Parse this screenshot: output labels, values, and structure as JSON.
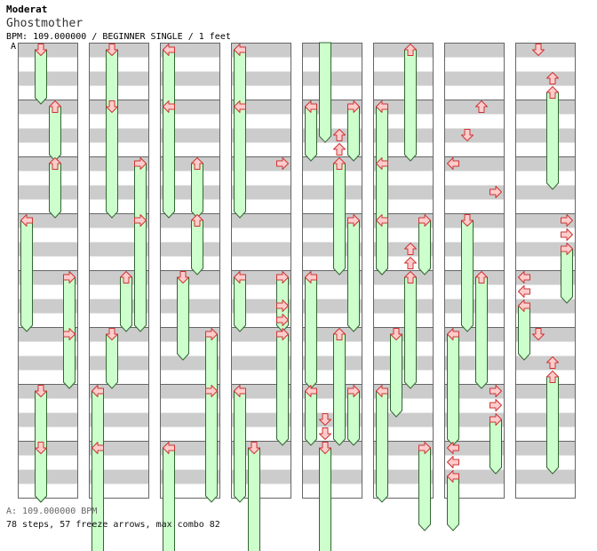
{
  "header": {
    "artist": "Moderat",
    "title": "Ghostmother",
    "info": "BPM: 109.000000 / BEGINNER SINGLE / 1 feet",
    "bpm_marker": "A"
  },
  "footer": {
    "bpm": "A: 109.000000 BPM",
    "summary": "78 steps, 57 freeze arrows, max combo 82"
  },
  "colors": {
    "stripe": "#cccccc",
    "cell_bg": "#ffffff",
    "border": "#666666",
    "arrow_fill": "#ffcccc",
    "arrow_stroke": "#cc3333",
    "freeze_fill": "#ccffcc",
    "freeze_stroke": "#336633"
  },
  "chart_data": {
    "type": "step-chart",
    "lanes": [
      "left",
      "down",
      "up",
      "right"
    ],
    "columns": 8,
    "measures_per_column": 8,
    "beats_per_measure": 4,
    "arrows": [
      [
        0,
        0,
        1,
        1
      ],
      [
        0,
        1,
        2,
        1
      ],
      [
        0,
        2,
        2,
        1
      ],
      [
        0,
        3,
        0,
        2
      ],
      [
        0,
        4,
        3,
        2
      ],
      [
        0,
        5,
        3,
        1
      ],
      [
        0,
        6,
        1,
        2
      ],
      [
        0,
        7,
        1,
        1
      ],
      [
        1,
        0,
        1,
        2
      ],
      [
        1,
        1,
        1,
        2
      ],
      [
        1,
        2,
        3,
        2
      ],
      [
        1,
        3,
        3,
        2
      ],
      [
        1,
        4,
        2,
        1
      ],
      [
        1,
        5,
        1,
        1
      ],
      [
        1,
        6,
        0,
        2
      ],
      [
        1,
        7,
        0,
        2
      ],
      [
        2,
        0,
        0,
        2
      ],
      [
        2,
        1,
        0,
        2
      ],
      [
        2,
        2,
        2,
        1
      ],
      [
        2,
        3,
        2,
        1
      ],
      [
        2,
        4,
        1,
        1.5
      ],
      [
        2,
        5,
        3,
        2
      ],
      [
        2,
        6,
        3,
        2
      ],
      [
        2,
        7,
        0,
        2
      ],
      [
        3,
        0,
        0,
        2
      ],
      [
        3,
        1,
        0,
        2
      ],
      [
        3,
        2,
        3,
        0
      ],
      [
        3,
        4,
        0,
        1
      ],
      [
        3,
        4,
        3,
        1
      ],
      [
        3,
        4.5,
        3,
        0
      ],
      [
        3,
        4.75,
        3,
        0
      ],
      [
        3,
        5,
        3,
        2
      ],
      [
        3,
        6,
        0,
        2
      ],
      [
        3,
        7,
        1,
        2
      ],
      [
        4,
        1,
        0,
        1
      ],
      [
        4,
        1,
        3,
        1
      ],
      [
        4,
        1.5,
        2,
        0
      ],
      [
        4,
        1.75,
        2,
        0
      ],
      [
        4,
        2,
        2,
        2
      ],
      [
        4,
        3,
        3,
        2
      ],
      [
        4,
        4,
        0,
        2
      ],
      [
        4,
        5,
        2,
        2
      ],
      [
        4,
        6,
        0,
        1
      ],
      [
        4,
        6,
        3,
        1
      ],
      [
        4,
        6.5,
        1,
        0
      ],
      [
        4,
        6.75,
        1,
        0
      ],
      [
        4,
        7,
        1,
        2
      ],
      [
        5,
        0,
        2,
        2
      ],
      [
        5,
        1,
        0,
        2
      ],
      [
        5,
        2,
        0,
        2
      ],
      [
        5,
        3,
        0,
        1
      ],
      [
        5,
        3,
        3,
        1
      ],
      [
        5,
        3.5,
        2,
        0
      ],
      [
        5,
        3.75,
        2,
        0
      ],
      [
        5,
        4,
        2,
        2
      ],
      [
        5,
        5,
        1,
        1.5
      ],
      [
        5,
        6,
        0,
        2
      ],
      [
        5,
        7,
        3,
        1.5
      ],
      [
        6,
        1,
        2,
        0
      ],
      [
        6,
        1.5,
        1,
        0
      ],
      [
        6,
        2,
        0,
        0
      ],
      [
        6,
        2.5,
        3,
        0
      ],
      [
        6,
        3,
        1,
        2
      ],
      [
        6,
        4,
        2,
        2
      ],
      [
        6,
        5,
        0,
        2
      ],
      [
        6,
        6,
        3,
        0
      ],
      [
        6,
        6.25,
        3,
        0
      ],
      [
        6,
        6.5,
        3,
        1
      ],
      [
        6,
        7,
        0,
        0
      ],
      [
        6,
        7.25,
        0,
        0
      ],
      [
        6,
        7.5,
        0,
        1
      ],
      [
        7,
        0,
        1,
        0
      ],
      [
        7,
        0.5,
        2,
        0
      ],
      [
        7,
        0.75,
        2,
        1.75
      ],
      [
        7,
        3,
        3,
        0
      ],
      [
        7,
        3.25,
        3,
        0
      ],
      [
        7,
        3.5,
        3,
        1
      ],
      [
        7,
        4,
        0,
        0
      ],
      [
        7,
        4.25,
        0,
        0
      ],
      [
        7,
        4.5,
        0,
        1
      ],
      [
        7,
        5,
        1,
        0
      ],
      [
        7,
        5.5,
        2,
        0
      ],
      [
        7,
        5.75,
        2,
        1.75
      ]
    ],
    "freeze_continuations": [
      [
        4,
        0,
        1,
        1.8
      ]
    ]
  }
}
